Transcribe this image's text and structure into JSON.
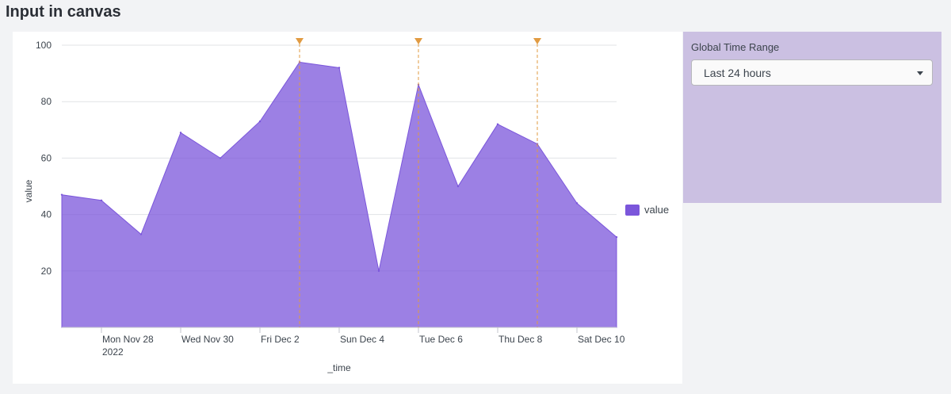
{
  "page": {
    "title": "Input in canvas"
  },
  "input": {
    "label": "Global Time Range",
    "selected": "Last 24 hours"
  },
  "chart_data": {
    "type": "area",
    "x": [
      "2022-11-27",
      "2022-11-28",
      "2022-11-29",
      "2022-11-30",
      "2022-12-01",
      "2022-12-02",
      "2022-12-03",
      "2022-12-04",
      "2022-12-05",
      "2022-12-06",
      "2022-12-07",
      "2022-12-08",
      "2022-12-09",
      "2022-12-10",
      "2022-12-11"
    ],
    "series": [
      {
        "name": "value",
        "color": "#7b56db",
        "values": [
          47,
          45,
          33,
          69,
          60,
          73,
          94,
          92,
          20,
          86,
          50,
          72,
          65,
          44,
          32
        ]
      }
    ],
    "annotations": [
      "2022-12-03",
      "2022-12-06",
      "2022-12-09"
    ],
    "annotation_color": "#e19b42",
    "x_ticks": [
      {
        "date": "2022-11-28",
        "label": "Mon Nov 28",
        "sublabel": "2022"
      },
      {
        "date": "2022-11-30",
        "label": "Wed Nov 30",
        "sublabel": ""
      },
      {
        "date": "2022-12-02",
        "label": "Fri Dec 2",
        "sublabel": ""
      },
      {
        "date": "2022-12-04",
        "label": "Sun Dec 4",
        "sublabel": ""
      },
      {
        "date": "2022-12-06",
        "label": "Tue Dec 6",
        "sublabel": ""
      },
      {
        "date": "2022-12-08",
        "label": "Thu Dec 8",
        "sublabel": ""
      },
      {
        "date": "2022-12-10",
        "label": "Sat Dec 10",
        "sublabel": ""
      }
    ],
    "y_ticks": [
      20,
      40,
      60,
      80,
      100
    ],
    "ylim": [
      0,
      100
    ],
    "xlabel": "_time",
    "ylabel": "value",
    "legend": {
      "position": "right"
    },
    "grid": true
  }
}
